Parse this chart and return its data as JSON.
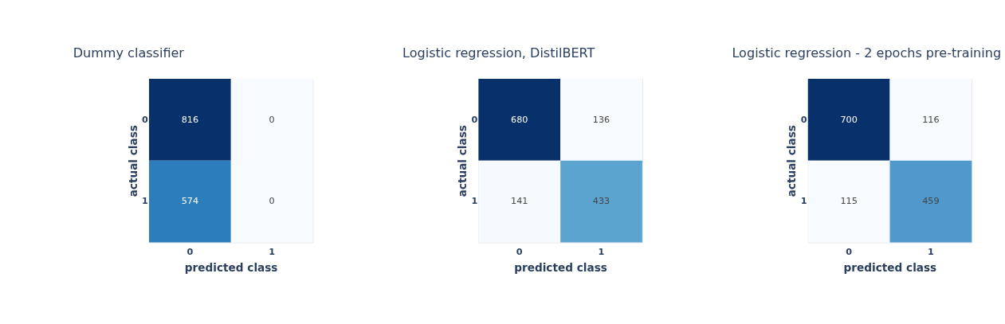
{
  "chart_data": [
    {
      "type": "heatmap",
      "title": "Dummy classifier",
      "xlabel": "predicted class",
      "ylabel": "actual class",
      "categories": [
        "0",
        "1"
      ],
      "y_categories": [
        "0",
        "1"
      ],
      "cells": [
        [
          816,
          0
        ],
        [
          574,
          0
        ]
      ],
      "data_labels": true
    },
    {
      "type": "heatmap",
      "title": "Logistic regression, DistilBERT",
      "xlabel": "predicted class",
      "ylabel": "actual class",
      "categories": [
        "0",
        "1"
      ],
      "y_categories": [
        "0",
        "1"
      ],
      "cells": [
        [
          680,
          136
        ],
        [
          141,
          433
        ]
      ],
      "data_labels": true
    },
    {
      "type": "heatmap",
      "title": "Logistic regression - 2 epochs pre-training",
      "xlabel": "predicted class",
      "ylabel": "actual class",
      "categories": [
        "0",
        "1"
      ],
      "y_categories": [
        "0",
        "1"
      ],
      "cells": [
        [
          700,
          116
        ],
        [
          115,
          459
        ]
      ],
      "data_labels": true
    }
  ]
}
